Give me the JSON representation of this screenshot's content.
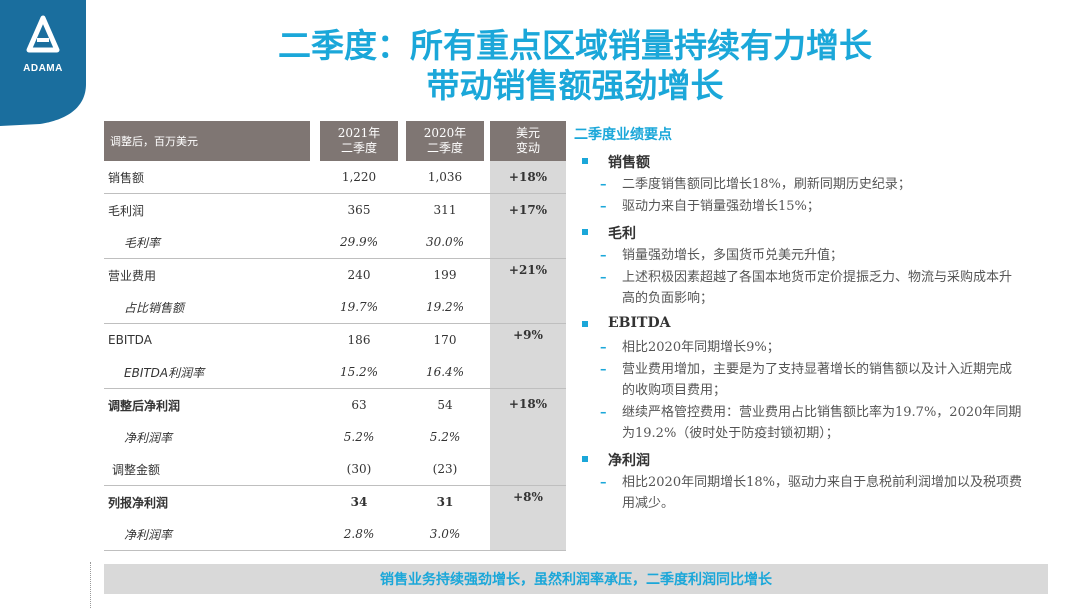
{
  "logo": {
    "text": "ADAMA",
    "color": "#1a6e9e"
  },
  "title": {
    "line1": "二季度：所有重点区域销量持续有力增长",
    "line2": "带动销售额强劲增长"
  },
  "table": {
    "headers": [
      "调整后，百万美元",
      "2021年\n二季度",
      "2020年\n二季度",
      "美元\n变动"
    ],
    "rows": [
      {
        "label": "销售额",
        "v2021": "1,220",
        "v2020": "1,036",
        "change": "+18%"
      },
      {
        "label": "毛利润",
        "v2021": "365",
        "v2020": "311",
        "change": "+17%"
      },
      {
        "label": "毛利率",
        "v2021": "29.9%",
        "v2020": "30.0%",
        "change": ""
      },
      {
        "label": "营业费用",
        "v2021": "240",
        "v2020": "199",
        "change": "+21%"
      },
      {
        "label": "占比销售额",
        "v2021": "19.7%",
        "v2020": "19.2%",
        "change": ""
      },
      {
        "label": "EBITDA",
        "v2021": "186",
        "v2020": "170",
        "change": "+9%"
      },
      {
        "label": "EBITDA利润率",
        "v2021": "15.2%",
        "v2020": "16.4%",
        "change": ""
      },
      {
        "label": "调整后净利润",
        "v2021": "63",
        "v2020": "54",
        "change": "+18%"
      },
      {
        "label": "净利润率",
        "v2021": "5.2%",
        "v2020": "5.2%",
        "change": ""
      },
      {
        "label": "调整金额",
        "v2021": "(30)",
        "v2020": "(23)",
        "change": ""
      },
      {
        "label": "列报净利润",
        "v2021": "34",
        "v2020": "31",
        "change": "+8%"
      },
      {
        "label": "净利润率",
        "v2021": "2.8%",
        "v2020": "3.0%",
        "change": ""
      }
    ]
  },
  "highlights": {
    "title": "二季度业绩要点",
    "sections": [
      {
        "heading": "销售额",
        "items": [
          "二季度销售额同比增长18%，刷新同期历史纪录；",
          "驱动力来自于销量强劲增长15%；"
        ]
      },
      {
        "heading": "毛利",
        "items": [
          "销量强劲增长，多国货币兑美元升值；",
          "上述积极因素超越了各国本地货币定价提振乏力、物流与采购成本升高的负面影响；"
        ]
      },
      {
        "heading": "EBITDA",
        "items": [
          "相比2020年同期增长9%；",
          "营业费用增加，主要是为了支持显著增长的销售额以及计入近期完成的收购项目费用；",
          "继续严格管控费用：营业费用占比销售额比率为19.7%，2020年同期为19.2%（彼时处于防疫封锁初期）；"
        ]
      },
      {
        "heading": "净利润",
        "items": [
          "相比2020年同期增长18%，驱动力来自于息税前利润增加以及税项费用减少。"
        ]
      }
    ]
  },
  "footer": {
    "text": "销售业务持续强劲增长，虽然利润率承压，二季度利润同比增长"
  },
  "colors": {
    "accent": "#1ba7d9",
    "header_bg": "#7f7673",
    "change_bg": "#d9d9d9"
  }
}
